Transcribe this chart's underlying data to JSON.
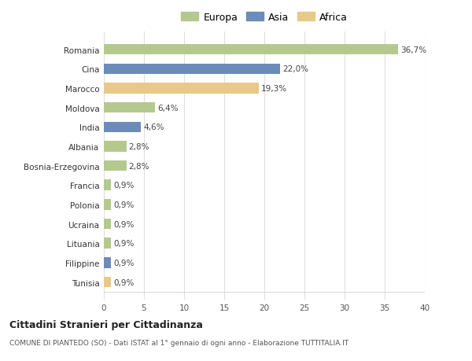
{
  "countries": [
    "Tunisia",
    "Filippine",
    "Lituania",
    "Ucraina",
    "Polonia",
    "Francia",
    "Bosnia-Erzegovina",
    "Albania",
    "India",
    "Moldova",
    "Marocco",
    "Cina",
    "Romania"
  ],
  "values": [
    0.9,
    0.9,
    0.9,
    0.9,
    0.9,
    0.9,
    2.8,
    2.8,
    4.6,
    6.4,
    19.3,
    22.0,
    36.7
  ],
  "labels": [
    "0,9%",
    "0,9%",
    "0,9%",
    "0,9%",
    "0,9%",
    "0,9%",
    "2,8%",
    "2,8%",
    "4,6%",
    "6,4%",
    "19,3%",
    "22,0%",
    "36,7%"
  ],
  "continents": [
    "Africa",
    "Asia",
    "Europa",
    "Europa",
    "Europa",
    "Europa",
    "Europa",
    "Europa",
    "Asia",
    "Europa",
    "Africa",
    "Asia",
    "Europa"
  ],
  "colors": {
    "Europa": "#b5c98e",
    "Asia": "#6b8cba",
    "Africa": "#e8c98a"
  },
  "legend_items": [
    "Europa",
    "Asia",
    "Africa"
  ],
  "legend_colors": [
    "#b5c98e",
    "#6b8cba",
    "#e8c98a"
  ],
  "xlim": [
    0,
    40
  ],
  "xticks": [
    0,
    5,
    10,
    15,
    20,
    25,
    30,
    35,
    40
  ],
  "title": "Cittadini Stranieri per Cittadinanza",
  "subtitle": "COMUNE DI PIANTEDO (SO) - Dati ISTAT al 1° gennaio di ogni anno - Elaborazione TUTTITALIA.IT",
  "background_color": "#ffffff",
  "grid_color": "#e0e0e0",
  "bar_height": 0.55,
  "label_fontsize": 7.5,
  "tick_fontsize": 7.5,
  "legend_fontsize": 9
}
